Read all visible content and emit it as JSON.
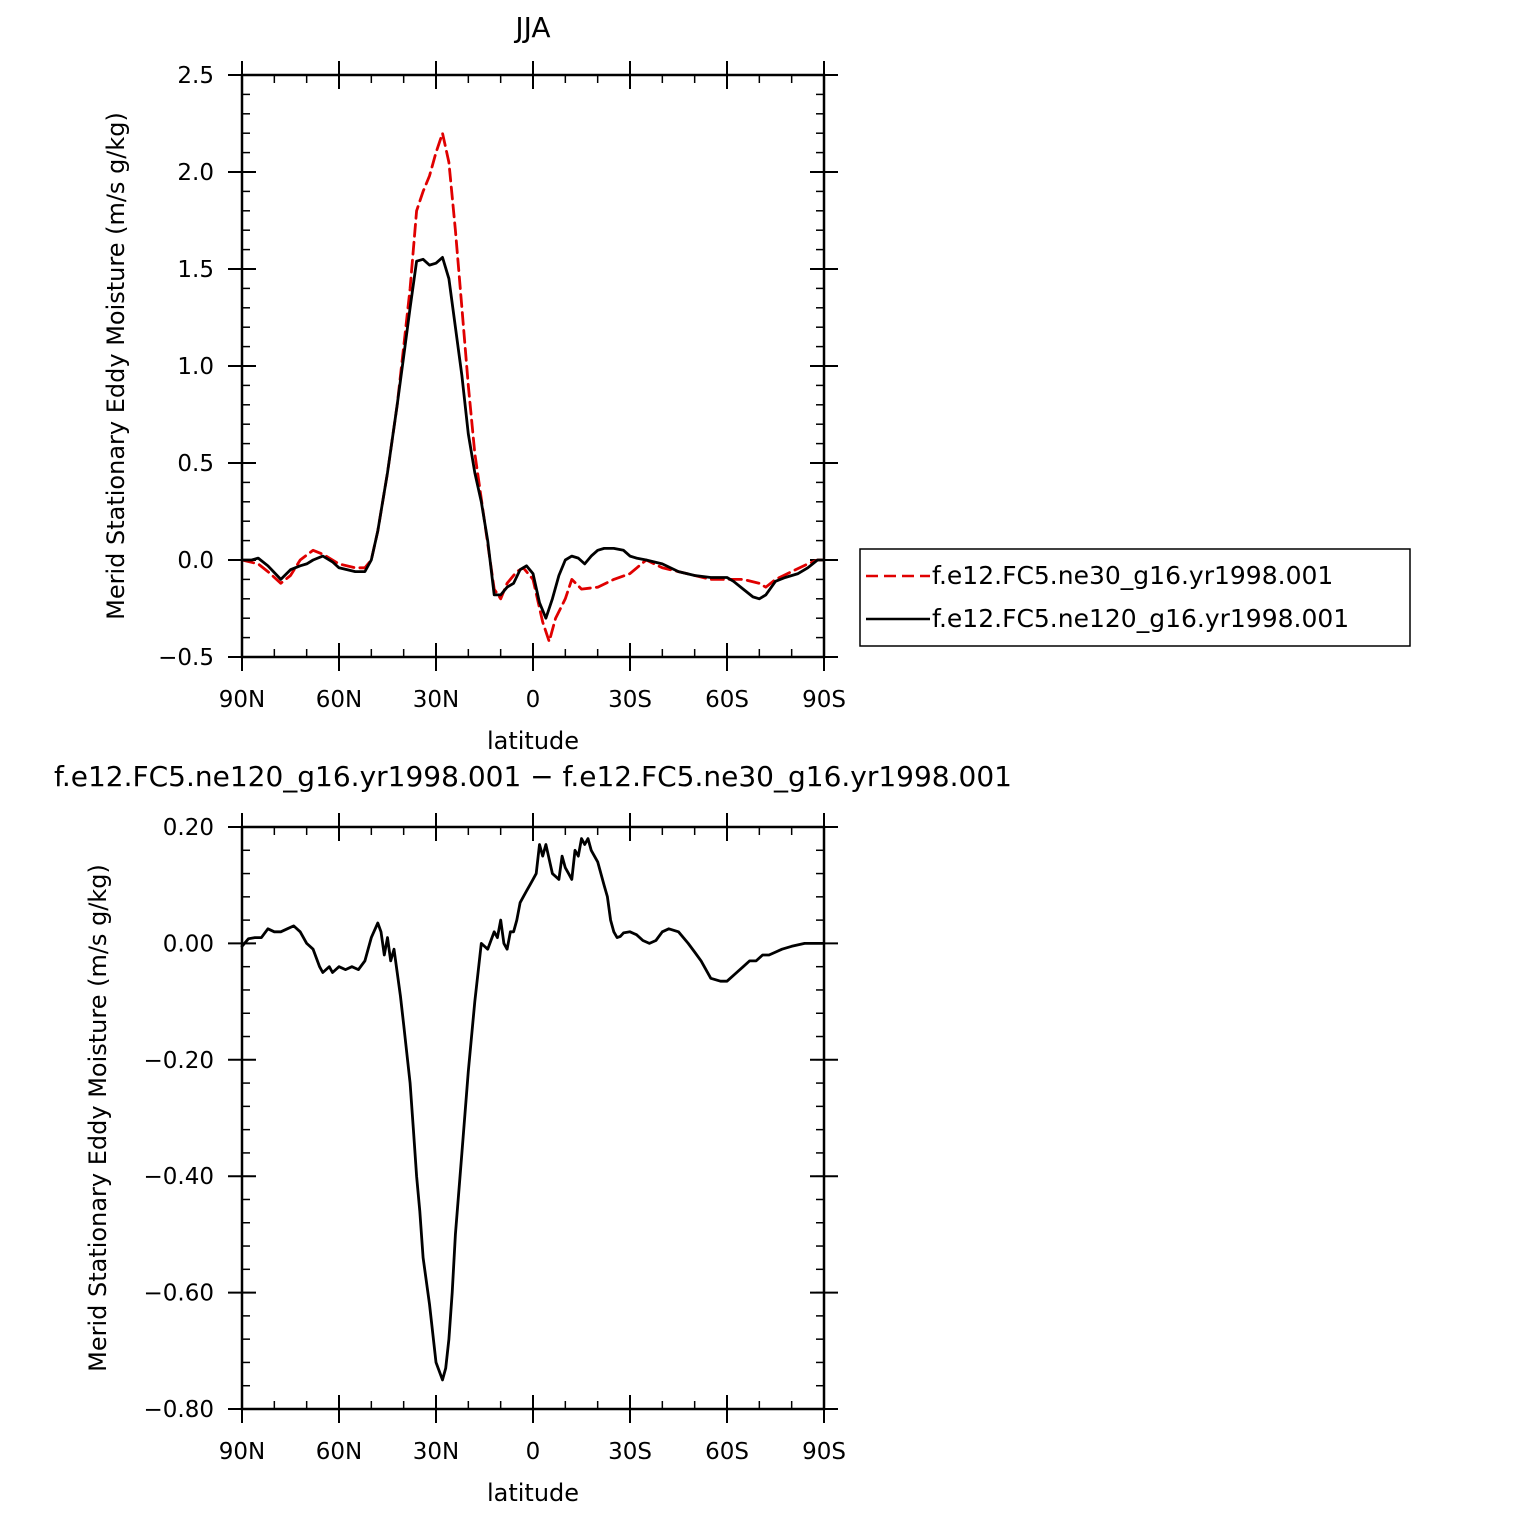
{
  "chart_data": [
    {
      "type": "line",
      "title": "JJA",
      "xlabel": "latitude",
      "ylabel": "Merid Stationary Eddy Moisture (m/s g/kg)",
      "x_tick_labels": [
        "90N",
        "60N",
        "30N",
        "0",
        "30S",
        "60S",
        "90S"
      ],
      "x_tick_values": [
        90,
        60,
        30,
        0,
        -30,
        -60,
        -90
      ],
      "xlim": [
        90,
        -90
      ],
      "ylim": [
        -0.5,
        2.5
      ],
      "y_tick_values": [
        -0.5,
        0.0,
        0.5,
        1.0,
        1.5,
        2.0,
        2.5
      ],
      "y_tick_labels": [
        "−0.5",
        "0.0",
        "0.5",
        "1.0",
        "1.5",
        "2.0",
        "2.5"
      ],
      "grid": false,
      "legend_position": "right",
      "series": [
        {
          "name": "f.e12.FC5.ne30_g16.yr1998.001",
          "color": "#e00000",
          "dash": "dashed",
          "x": [
            90,
            85,
            82,
            78,
            75,
            72,
            68,
            65,
            60,
            55,
            52,
            50,
            48,
            45,
            42,
            40,
            38,
            36,
            34,
            32,
            30,
            28,
            26,
            24,
            22,
            20,
            18,
            15,
            12,
            10,
            8,
            5,
            3,
            0,
            -3,
            -5,
            -7,
            -10,
            -12,
            -15,
            -20,
            -25,
            -30,
            -35,
            -40,
            -45,
            -50,
            -55,
            -60,
            -65,
            -70,
            -72,
            -75,
            -80,
            -85,
            -88,
            -90
          ],
          "y": [
            0.0,
            -0.02,
            -0.06,
            -0.12,
            -0.08,
            0.0,
            0.05,
            0.03,
            -0.02,
            -0.04,
            -0.04,
            0.0,
            0.15,
            0.45,
            0.8,
            1.1,
            1.4,
            1.8,
            1.9,
            1.98,
            2.1,
            2.2,
            2.05,
            1.7,
            1.3,
            0.9,
            0.55,
            0.2,
            -0.15,
            -0.2,
            -0.12,
            -0.06,
            -0.04,
            -0.1,
            -0.32,
            -0.42,
            -0.3,
            -0.2,
            -0.1,
            -0.15,
            -0.14,
            -0.1,
            -0.07,
            0.0,
            -0.04,
            -0.06,
            -0.08,
            -0.1,
            -0.1,
            -0.1,
            -0.12,
            -0.14,
            -0.1,
            -0.06,
            -0.02,
            0.0,
            0.0
          ]
        },
        {
          "name": "f.e12.FC5.ne120_g16.yr1998.001",
          "color": "#000000",
          "dash": "solid",
          "x": [
            90,
            87,
            85,
            82,
            78,
            75,
            72,
            70,
            68,
            65,
            62,
            60,
            55,
            52,
            50,
            48,
            45,
            42,
            40,
            38,
            36,
            34,
            32,
            30,
            28,
            26,
            24,
            22,
            20,
            18,
            16,
            14,
            12,
            10,
            8,
            6,
            4,
            2,
            0,
            -2,
            -4,
            -6,
            -8,
            -10,
            -12,
            -14,
            -16,
            -18,
            -20,
            -22,
            -25,
            -28,
            -30,
            -32,
            -35,
            -40,
            -45,
            -50,
            -55,
            -60,
            -62,
            -65,
            -68,
            -70,
            -72,
            -75,
            -78,
            -82,
            -85,
            -88,
            -90
          ],
          "y": [
            0.0,
            0.0,
            0.01,
            -0.03,
            -0.1,
            -0.05,
            -0.03,
            -0.02,
            0.0,
            0.02,
            -0.01,
            -0.04,
            -0.06,
            -0.06,
            0.0,
            0.15,
            0.45,
            0.8,
            1.05,
            1.3,
            1.54,
            1.55,
            1.52,
            1.53,
            1.56,
            1.45,
            1.2,
            0.95,
            0.65,
            0.45,
            0.3,
            0.1,
            -0.18,
            -0.18,
            -0.14,
            -0.12,
            -0.05,
            -0.03,
            -0.07,
            -0.22,
            -0.3,
            -0.2,
            -0.08,
            0.0,
            0.02,
            0.01,
            -0.02,
            0.02,
            0.05,
            0.06,
            0.06,
            0.05,
            0.02,
            0.01,
            0.0,
            -0.02,
            -0.06,
            -0.08,
            -0.09,
            -0.09,
            -0.11,
            -0.15,
            -0.19,
            -0.2,
            -0.18,
            -0.11,
            -0.09,
            -0.07,
            -0.04,
            0.0,
            0.0
          ]
        }
      ]
    },
    {
      "type": "line",
      "title": "f.e12.FC5.ne120_g16.yr1998.001 − f.e12.FC5.ne30_g16.yr1998.001",
      "xlabel": "latitude",
      "ylabel": "Merid Stationary Eddy Moisture (m/s g/kg)",
      "x_tick_labels": [
        "90N",
        "60N",
        "30N",
        "0",
        "30S",
        "60S",
        "90S"
      ],
      "x_tick_values": [
        90,
        60,
        30,
        0,
        -30,
        -60,
        -90
      ],
      "xlim": [
        90,
        -90
      ],
      "ylim": [
        -0.8,
        0.2
      ],
      "y_tick_values": [
        -0.8,
        -0.6,
        -0.4,
        -0.2,
        0.0,
        0.2
      ],
      "y_tick_labels": [
        "−0.80",
        "−0.60",
        "−0.40",
        "−0.20",
        "0.00",
        "0.20"
      ],
      "grid": false,
      "series": [
        {
          "color": "#000000",
          "dash": "solid",
          "x": [
            90,
            88,
            86,
            84,
            82,
            80,
            78,
            76,
            74,
            72,
            70,
            68,
            66,
            65,
            63,
            62,
            60,
            58,
            56,
            54,
            52,
            50,
            48,
            47,
            46,
            45,
            44,
            43,
            42,
            41,
            40,
            38,
            37,
            36,
            35,
            34,
            32,
            30,
            28,
            27,
            26,
            25,
            24,
            22,
            20,
            18,
            16,
            14,
            12,
            11,
            10,
            9,
            8,
            7,
            6,
            5,
            4,
            3,
            2,
            1,
            0,
            -1,
            -2,
            -3,
            -4,
            -6,
            -8,
            -9,
            -10,
            -11,
            -12,
            -13,
            -14,
            -15,
            -16,
            -17,
            -18,
            -20,
            -22,
            -23,
            -24,
            -25,
            -26,
            -27,
            -28,
            -30,
            -32,
            -34,
            -36,
            -38,
            -40,
            -42,
            -45,
            -48,
            -50,
            -52,
            -55,
            -58,
            -60,
            -63,
            -65,
            -67,
            -69,
            -71,
            -73,
            -75,
            -77,
            -80,
            -84,
            -88,
            -90
          ],
          "y": [
            -0.005,
            0.008,
            0.01,
            0.01,
            0.025,
            0.02,
            0.02,
            0.025,
            0.03,
            0.02,
            0.0,
            -0.01,
            -0.04,
            -0.05,
            -0.04,
            -0.05,
            -0.04,
            -0.045,
            -0.04,
            -0.045,
            -0.03,
            0.01,
            0.035,
            0.02,
            -0.02,
            0.01,
            -0.03,
            -0.01,
            -0.05,
            -0.09,
            -0.14,
            -0.24,
            -0.32,
            -0.4,
            -0.46,
            -0.54,
            -0.62,
            -0.72,
            -0.75,
            -0.73,
            -0.68,
            -0.6,
            -0.5,
            -0.36,
            -0.22,
            -0.1,
            0.0,
            -0.01,
            0.02,
            0.01,
            0.04,
            0.0,
            -0.01,
            0.02,
            0.02,
            0.04,
            0.07,
            0.08,
            0.09,
            0.1,
            0.11,
            0.12,
            0.17,
            0.15,
            0.17,
            0.12,
            0.11,
            0.15,
            0.13,
            0.12,
            0.11,
            0.16,
            0.15,
            0.18,
            0.17,
            0.18,
            0.16,
            0.14,
            0.1,
            0.08,
            0.04,
            0.02,
            0.01,
            0.012,
            0.018,
            0.02,
            0.015,
            0.005,
            0.0,
            0.005,
            0.02,
            0.025,
            0.02,
            0.0,
            -0.015,
            -0.03,
            -0.06,
            -0.065,
            -0.065,
            -0.05,
            -0.04,
            -0.03,
            -0.03,
            -0.02,
            -0.02,
            -0.015,
            -0.01,
            -0.005,
            0.0,
            0.0,
            0.0
          ]
        }
      ]
    }
  ]
}
